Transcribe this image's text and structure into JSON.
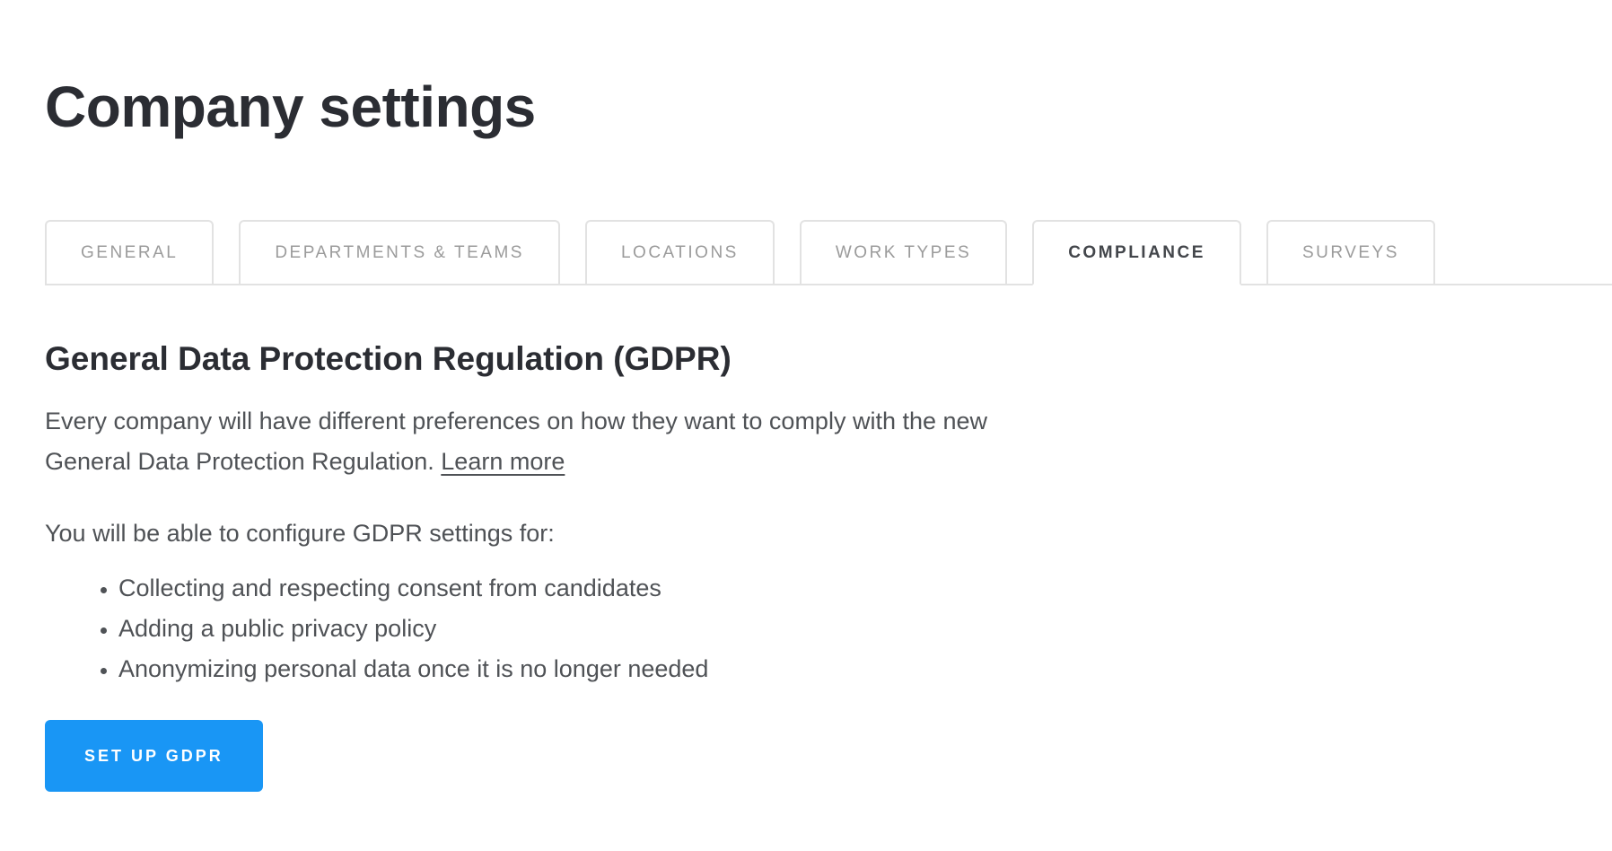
{
  "page": {
    "title": "Company settings",
    "background": "#ffffff"
  },
  "tabs": {
    "items": [
      {
        "label": "GENERAL",
        "active": false
      },
      {
        "label": "DEPARTMENTS & TEAMS",
        "active": false
      },
      {
        "label": "LOCATIONS",
        "active": false
      },
      {
        "label": "WORK TYPES",
        "active": false
      },
      {
        "label": "COMPLIANCE",
        "active": true
      },
      {
        "label": "SURVEYS",
        "active": false
      }
    ]
  },
  "content": {
    "heading": "General Data Protection Regulation (GDPR)",
    "intro_text": "Every company will have different preferences on how they want to comply with the new\nGeneral Data Protection Regulation.",
    "learn_more_label": "Learn more",
    "configure_line": "You will be able to configure GDPR settings for:",
    "bullets": [
      "Collecting and respecting consent from candidates",
      "Adding a public privacy policy",
      "Anonymizing personal data once it is no longer needed"
    ],
    "cta_label": "SET UP GDPR"
  },
  "colors": {
    "accent_blue": "#1996f5",
    "title_text": "#2b2d33",
    "body_text": "#4f5256",
    "inactive_tab_text": "#9b9b9b",
    "active_tab_text": "#43464b",
    "tab_border": "#e2e2e2"
  }
}
